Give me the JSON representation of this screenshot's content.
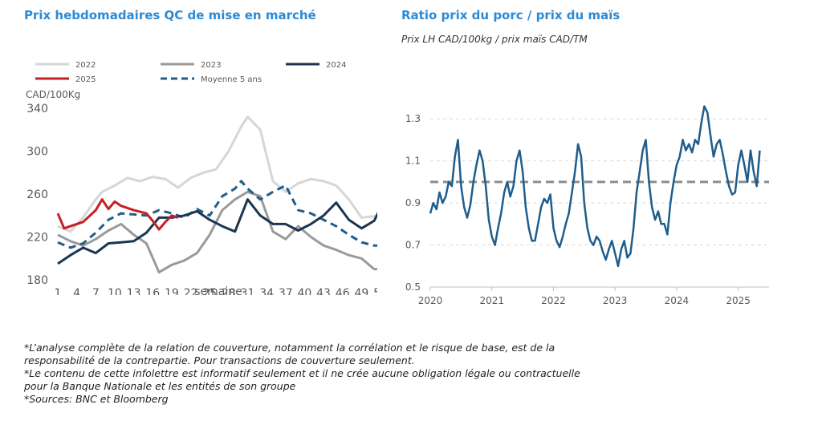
{
  "colors": {
    "title": "#2b8ad6",
    "y2022": "#d6d6d6",
    "y2023": "#9a9a9a",
    "y2024": "#1b3550",
    "y2025": "#c42026",
    "avg": "#1f5d8c",
    "ratio": "#1f5d8c",
    "ref": "#8c8c8c"
  },
  "chart_data": [
    {
      "type": "line",
      "title": "Prix hebdomadaires QC de mise en marché",
      "ylabel": "CAD/100Kg",
      "xlabel": "semaine",
      "xlim": [
        1,
        52
      ],
      "ylim": [
        180,
        340
      ],
      "x_ticks": [
        "1",
        "4",
        "7",
        "10",
        "13",
        "16",
        "19",
        "22",
        "25",
        "28",
        "31",
        "34",
        "37",
        "40",
        "43",
        "46",
        "49",
        "52"
      ],
      "y_ticks": [
        "180",
        "220",
        "260",
        "300",
        "340"
      ],
      "legend": [
        "2022",
        "2023",
        "2024",
        "2025",
        "Moyenne 5 ans"
      ],
      "legend_position": "top",
      "series": [
        {
          "name": "2022",
          "x": [
            1,
            3,
            5,
            7,
            8,
            10,
            12,
            14,
            16,
            18,
            20,
            22,
            24,
            26,
            28,
            30,
            31,
            33,
            35,
            37,
            39,
            41,
            43,
            45,
            47,
            49,
            52
          ],
          "y": [
            230,
            225,
            238,
            255,
            262,
            268,
            275,
            272,
            276,
            274,
            266,
            275,
            280,
            283,
            300,
            323,
            332,
            320,
            272,
            262,
            270,
            274,
            272,
            268,
            255,
            238,
            240
          ]
        },
        {
          "name": "2023",
          "x": [
            1,
            3,
            5,
            7,
            9,
            11,
            13,
            15,
            17,
            19,
            21,
            23,
            25,
            27,
            29,
            31,
            33,
            35,
            37,
            39,
            41,
            43,
            45,
            47,
            49,
            51,
            52
          ],
          "y": [
            222,
            216,
            212,
            218,
            226,
            232,
            222,
            214,
            187,
            194,
            198,
            205,
            222,
            245,
            255,
            262,
            258,
            225,
            218,
            230,
            220,
            212,
            208,
            203,
            200,
            190,
            190
          ]
        },
        {
          "name": "2024",
          "x": [
            1,
            3,
            5,
            7,
            9,
            11,
            13,
            15,
            17,
            19,
            21,
            23,
            25,
            27,
            29,
            31,
            33,
            35,
            37,
            39,
            41,
            43,
            45,
            47,
            49,
            51,
            52
          ],
          "y": [
            195,
            203,
            210,
            205,
            214,
            215,
            216,
            224,
            238,
            238,
            240,
            244,
            236,
            230,
            225,
            255,
            240,
            232,
            232,
            226,
            232,
            240,
            252,
            236,
            228,
            235,
            247
          ]
        },
        {
          "name": "2025",
          "x": [
            1,
            2,
            3,
            5,
            7,
            8,
            9,
            10,
            11,
            13,
            15,
            16,
            17,
            18,
            19,
            20
          ],
          "y": [
            242,
            228,
            230,
            234,
            245,
            255,
            246,
            253,
            249,
            245,
            242,
            235,
            227,
            234,
            240,
            238
          ]
        },
        {
          "name": "Moyenne 5 ans",
          "x": [
            1,
            3,
            5,
            7,
            9,
            11,
            13,
            15,
            17,
            19,
            21,
            23,
            25,
            27,
            29,
            30,
            31,
            33,
            35,
            37,
            39,
            41,
            43,
            45,
            47,
            49,
            51,
            52
          ],
          "y": [
            215,
            210,
            214,
            224,
            236,
            242,
            241,
            240,
            245,
            242,
            238,
            246,
            240,
            258,
            265,
            272,
            265,
            255,
            262,
            268,
            245,
            242,
            236,
            230,
            222,
            215,
            212,
            212
          ]
        }
      ]
    },
    {
      "type": "line",
      "title": "Ratio prix du porc / prix du maïs",
      "subtitle": "Prix LH CAD/100kg / prix maïs CAD/TM",
      "xlim": [
        2020.0,
        2025.5
      ],
      "ylim": [
        0.5,
        1.4
      ],
      "x_ticks": [
        "2020",
        "2021",
        "2022",
        "2023",
        "2024",
        "2025"
      ],
      "y_ticks": [
        "0.5",
        "0.7",
        "0.9",
        "1.1",
        "1.3"
      ],
      "grid": "horizontal",
      "reference_line": {
        "y": 1.0,
        "style": "dashed"
      },
      "series": [
        {
          "name": "",
          "x": [
            2020.0,
            2020.05,
            2020.1,
            2020.15,
            2020.2,
            2020.25,
            2020.3,
            2020.35,
            2020.4,
            2020.45,
            2020.5,
            2020.55,
            2020.6,
            2020.65,
            2020.7,
            2020.75,
            2020.8,
            2020.85,
            2020.9,
            2020.95,
            2021.0,
            2021.05,
            2021.1,
            2021.15,
            2021.2,
            2021.25,
            2021.3,
            2021.35,
            2021.4,
            2021.45,
            2021.5,
            2021.55,
            2021.6,
            2021.65,
            2021.7,
            2021.75,
            2021.8,
            2021.85,
            2021.9,
            2021.95,
            2022.0,
            2022.05,
            2022.1,
            2022.15,
            2022.2,
            2022.25,
            2022.3,
            2022.35,
            2022.4,
            2022.45,
            2022.5,
            2022.55,
            2022.6,
            2022.65,
            2022.7,
            2022.75,
            2022.8,
            2022.85,
            2022.9,
            2022.95,
            2023.0,
            2023.05,
            2023.1,
            2023.15,
            2023.2,
            2023.25,
            2023.3,
            2023.35,
            2023.4,
            2023.45,
            2023.5,
            2023.55,
            2023.6,
            2023.65,
            2023.7,
            2023.75,
            2023.8,
            2023.85,
            2023.9,
            2023.95,
            2024.0,
            2024.05,
            2024.1,
            2024.15,
            2024.2,
            2024.25,
            2024.3,
            2024.35,
            2024.4,
            2024.45,
            2024.5,
            2024.55,
            2024.6,
            2024.65,
            2024.7,
            2024.75,
            2024.8,
            2024.85,
            2024.9,
            2024.95,
            2025.0,
            2025.05,
            2025.1,
            2025.15,
            2025.2,
            2025.25,
            2025.3,
            2025.35
          ],
          "y": [
            0.85,
            0.9,
            0.87,
            0.95,
            0.9,
            0.93,
            1.0,
            0.98,
            1.12,
            1.2,
            0.98,
            0.88,
            0.83,
            0.89,
            1.0,
            1.08,
            1.15,
            1.1,
            0.98,
            0.82,
            0.74,
            0.7,
            0.78,
            0.85,
            0.95,
            1.0,
            0.93,
            0.98,
            1.1,
            1.15,
            1.05,
            0.88,
            0.78,
            0.72,
            0.72,
            0.8,
            0.88,
            0.92,
            0.9,
            0.94,
            0.78,
            0.72,
            0.69,
            0.74,
            0.8,
            0.85,
            0.95,
            1.05,
            1.18,
            1.12,
            0.9,
            0.78,
            0.72,
            0.7,
            0.74,
            0.72,
            0.67,
            0.63,
            0.68,
            0.72,
            0.66,
            0.6,
            0.68,
            0.72,
            0.64,
            0.66,
            0.78,
            0.95,
            1.05,
            1.15,
            1.2,
            1.0,
            0.88,
            0.82,
            0.86,
            0.8,
            0.8,
            0.75,
            0.9,
            1.0,
            1.08,
            1.12,
            1.2,
            1.15,
            1.18,
            1.14,
            1.2,
            1.18,
            1.28,
            1.36,
            1.33,
            1.22,
            1.12,
            1.18,
            1.2,
            1.13,
            1.05,
            0.98,
            0.94,
            0.95,
            1.08,
            1.15,
            1.08,
            1.0,
            1.15,
            1.05,
            0.98,
            1.15
          ]
        }
      ]
    }
  ],
  "footnotes": [
    "*L’analyse complète de la relation de couverture, notamment la corrélation et le risque de base, est de la",
    "responsabilité de la contrepartie. Pour transactions de couverture seulement.",
    "*Le contenu de cette infolettre est informatif seulement et il ne crée aucune obligation légale ou contractuelle",
    "pour la Banque Nationale et les entités de son groupe",
    "*Sources: BNC et Bloomberg"
  ]
}
